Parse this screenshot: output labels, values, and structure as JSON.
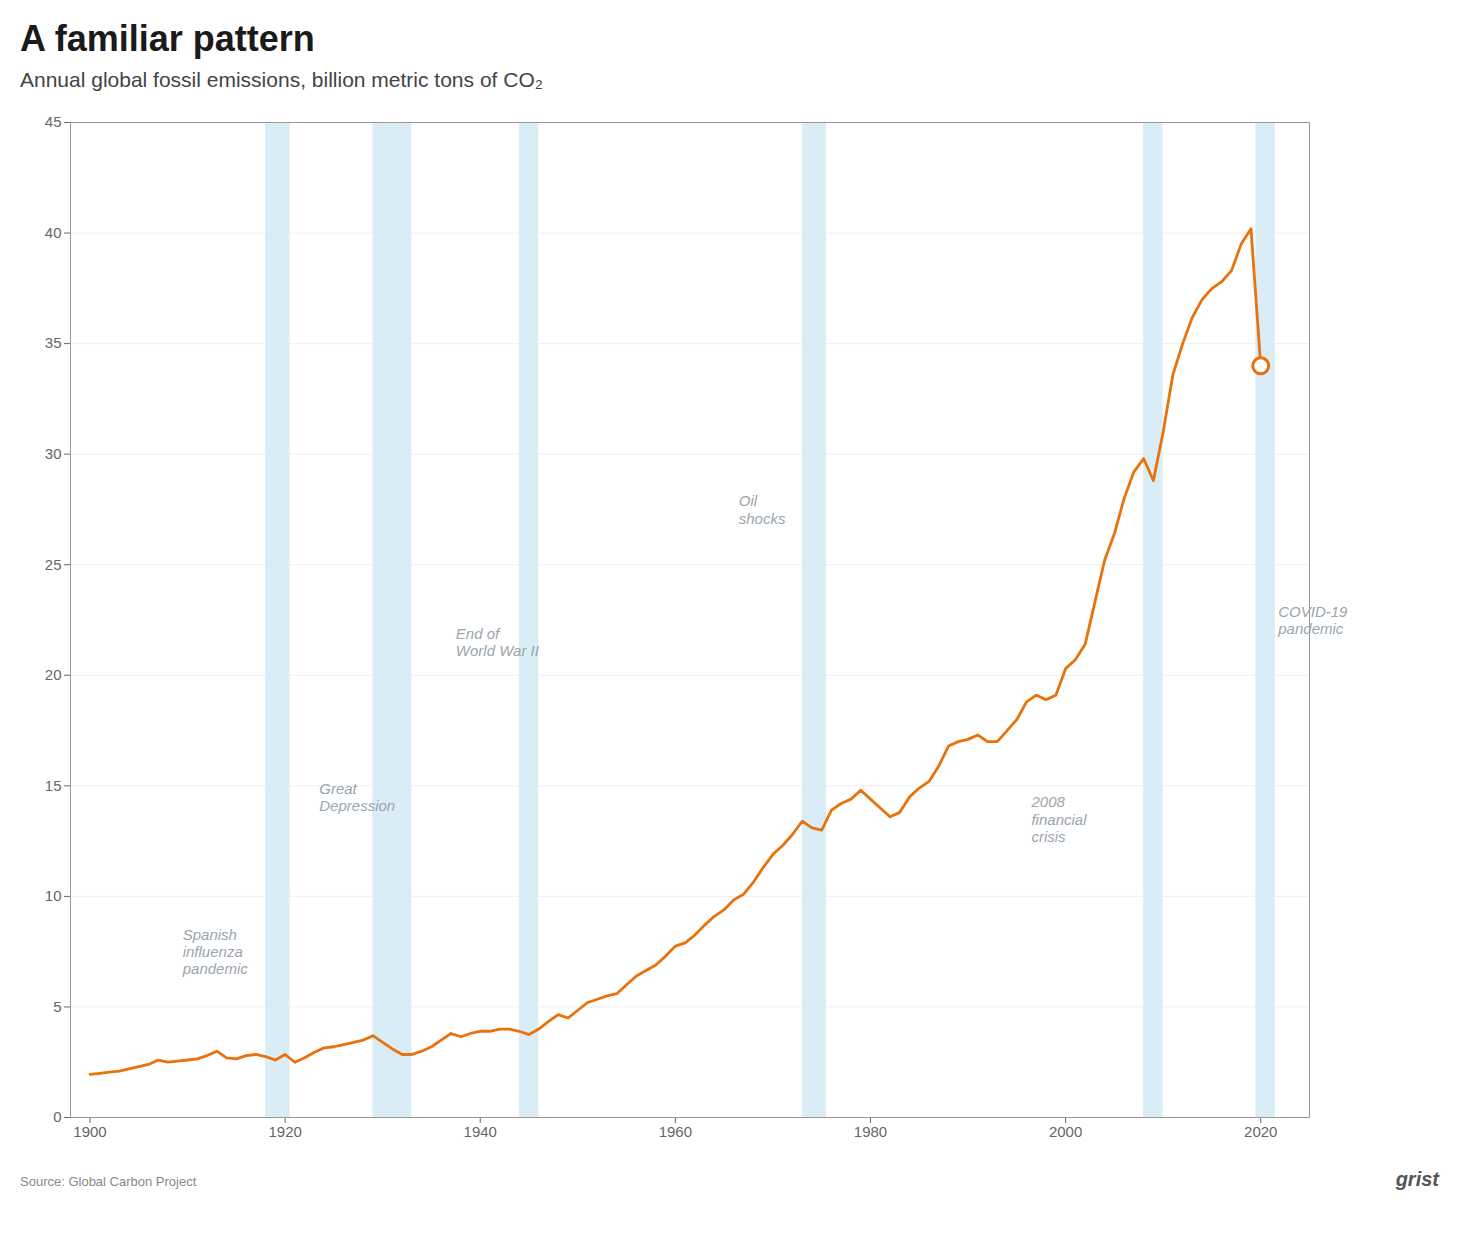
{
  "chart_data": {
    "type": "line",
    "title": "A familiar pattern",
    "subtitle": "Annual global fossil emissions, billion metric tons of CO₂",
    "source": "Source: Global Carbon Project",
    "logo": "grist",
    "color": "#E8720C",
    "x": [
      1900,
      1901,
      1902,
      1903,
      1904,
      1905,
      1906,
      1907,
      1908,
      1909,
      1910,
      1911,
      1912,
      1913,
      1914,
      1915,
      1916,
      1917,
      1918,
      1919,
      1920,
      1921,
      1922,
      1923,
      1924,
      1925,
      1926,
      1927,
      1928,
      1929,
      1930,
      1931,
      1932,
      1933,
      1934,
      1935,
      1936,
      1937,
      1938,
      1939,
      1940,
      1941,
      1942,
      1943,
      1944,
      1945,
      1946,
      1947,
      1948,
      1949,
      1950,
      1951,
      1952,
      1953,
      1954,
      1955,
      1956,
      1957,
      1958,
      1959,
      1960,
      1961,
      1962,
      1963,
      1964,
      1965,
      1966,
      1967,
      1968,
      1969,
      1970,
      1971,
      1972,
      1973,
      1974,
      1975,
      1976,
      1977,
      1978,
      1979,
      1980,
      1981,
      1982,
      1983,
      1984,
      1985,
      1986,
      1987,
      1988,
      1989,
      1990,
      1991,
      1992,
      1993,
      1994,
      1995,
      1996,
      1997,
      1998,
      1999,
      2000,
      2001,
      2002,
      2003,
      2004,
      2005,
      2006,
      2007,
      2008,
      2009,
      2010,
      2011,
      2012,
      2013,
      2014,
      2015,
      2016,
      2017,
      2018,
      2019,
      2020
    ],
    "values": [
      1.95,
      2.0,
      2.05,
      2.1,
      2.2,
      2.3,
      2.4,
      2.6,
      2.5,
      2.55,
      2.6,
      2.65,
      2.8,
      3.0,
      2.7,
      2.65,
      2.8,
      2.85,
      2.75,
      2.6,
      2.85,
      2.5,
      2.7,
      2.95,
      3.15,
      3.2,
      3.3,
      3.4,
      3.5,
      3.7,
      3.4,
      3.1,
      2.85,
      2.85,
      3.0,
      3.2,
      3.5,
      3.8,
      3.65,
      3.8,
      3.9,
      3.9,
      4.0,
      4.0,
      3.9,
      3.75,
      4.0,
      4.35,
      4.65,
      4.5,
      4.85,
      5.2,
      5.35,
      5.5,
      5.6,
      6.0,
      6.4,
      6.65,
      6.9,
      7.3,
      7.75,
      7.9,
      8.25,
      8.7,
      9.1,
      9.4,
      9.85,
      10.1,
      10.65,
      11.3,
      11.9,
      12.3,
      12.8,
      13.4,
      13.1,
      13.0,
      13.9,
      14.2,
      14.4,
      14.8,
      14.4,
      14.0,
      13.6,
      13.8,
      14.5,
      14.9,
      15.2,
      15.9,
      16.8,
      17.0,
      17.1,
      17.3,
      17.0,
      17.0,
      17.5,
      18.0,
      18.8,
      19.1,
      18.9,
      19.1,
      20.3,
      20.7,
      21.4,
      23.3,
      25.2,
      26.4,
      28.0,
      29.2,
      29.8,
      28.8,
      31.0,
      33.6,
      35.0,
      36.2,
      37.0,
      37.5,
      37.8,
      38.3,
      39.5,
      40.2,
      34.0
    ],
    "endpoint": {
      "x": 2020,
      "y": 34.0
    },
    "shading": {
      "color": "#DAEDF7",
      "regions": [
        {
          "xmin": 1918,
          "xmax": 1920.5
        },
        {
          "xmin": 1929,
          "xmax": 1933
        },
        {
          "xmin": 1944,
          "xmax": 1946
        },
        {
          "xmin": 1973,
          "xmax": 1975.5
        },
        {
          "xmin": 2008,
          "xmax": 2010
        },
        {
          "xmin": 2019.5,
          "xmax": 2021.5
        }
      ]
    },
    "annotations": [
      {
        "text": "Spanish\ninfluenza\npandemic",
        "x": 1909.5,
        "y": 7.5,
        "color": "#9AA5AE"
      },
      {
        "text": "Great\nDepression",
        "x": 1923.5,
        "y": 14.5,
        "color": "#9AA5AE"
      },
      {
        "text": "End of\nWorld War II",
        "x": 1937.5,
        "y": 21.5,
        "color": "#9AA5AE"
      },
      {
        "text": "Oil\nshocks",
        "x": 1966.5,
        "y": 27.5,
        "color": "#9AA5AE"
      },
      {
        "text": "2008\nfinancial\ncrisis",
        "x": 1996.5,
        "y": 13.5,
        "color": "#9AA5AE"
      },
      {
        "text": "COVID-19\npandemic",
        "x": 2021.8,
        "y": 22.5,
        "color": "#9AA5AE"
      }
    ],
    "xlim": [
      1898,
      2025
    ],
    "ylim": [
      0,
      45
    ],
    "xticks": [
      1900,
      1920,
      1940,
      1960,
      1980,
      2000,
      2020
    ],
    "yticks": [
      0,
      5,
      10,
      15,
      20,
      25,
      30,
      35,
      40,
      45
    ],
    "grid": true
  }
}
